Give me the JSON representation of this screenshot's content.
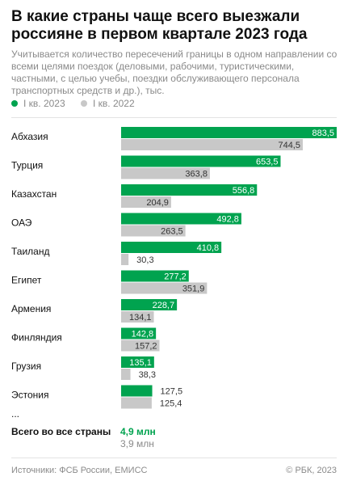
{
  "title": "В какие страны чаще всего выезжали россияне в первом квартале 2023 года",
  "subtitle": "Учитывается количество пересечений границы в одном направлении со всеми целями поездок (деловыми, рабочими, туристическими, частными, с целью учебы, поездки обслуживающего персонала транспортных средств и др.), тыс.",
  "colors": {
    "accent": "#00a34f",
    "secondary": "#c8c8c8",
    "muted_text": "#8a8a8a"
  },
  "ellipsis": "...",
  "totals": {
    "label": "Всего во все страны",
    "value_2023": "4,9 млн",
    "value_2022": "3,9 млн"
  },
  "footer": {
    "source": "Источники: ФСБ России, ЕМИСС",
    "copyright": "© РБК, 2023"
  },
  "chart_data": {
    "type": "bar",
    "orientation": "horizontal",
    "categories": [
      "Абхазия",
      "Турция",
      "Казахстан",
      "ОАЭ",
      "Таиланд",
      "Египет",
      "Армения",
      "Финляндия",
      "Грузия",
      "Эстония"
    ],
    "series": [
      {
        "name": "I кв. 2023",
        "color": "#00a34f",
        "values": [
          883.5,
          653.5,
          556.8,
          492.8,
          410.8,
          277.2,
          228.7,
          142.8,
          135.1,
          127.5
        ]
      },
      {
        "name": "I кв. 2022",
        "color": "#c8c8c8",
        "values": [
          744.5,
          363.8,
          204.9,
          263.5,
          30.3,
          351.9,
          134.1,
          157.2,
          38.3,
          125.4
        ]
      }
    ],
    "legend_position": "top-left",
    "grid": false
  }
}
